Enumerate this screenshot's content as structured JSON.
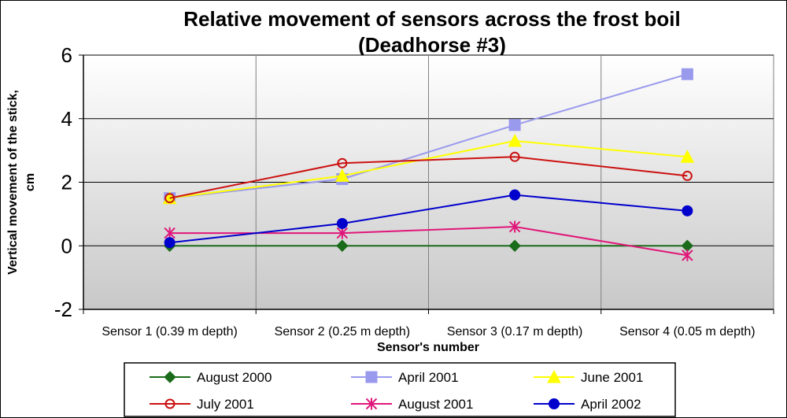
{
  "chart_data": {
    "type": "line",
    "title": "Relative movement of sensors across the frost boil",
    "subtitle": "(Deadhorse #3)",
    "xlabel": "Sensor's number",
    "ylabel": "Vertical movement of the stick, cm",
    "categories": [
      "Sensor 1 (0.39 m depth)",
      "Sensor 2 (0.25 m depth)",
      "Sensor 3 (0.17 m depth)",
      "Sensor 4 (0.05 m depth)"
    ],
    "ylim": [
      -2,
      6
    ],
    "yticks": [
      -2,
      0,
      2,
      4,
      6
    ],
    "grid": true,
    "legend_position": "bottom",
    "series": [
      {
        "name": "August 2000",
        "values": [
          0,
          0,
          0,
          0
        ],
        "color": "#1a6b1a",
        "marker": "diamond"
      },
      {
        "name": "April 2001",
        "values": [
          1.5,
          2.1,
          3.8,
          5.4
        ],
        "color": "#9999ee",
        "marker": "square"
      },
      {
        "name": "June 2001",
        "values": [
          1.5,
          2.2,
          3.3,
          2.8
        ],
        "color": "#ffff00",
        "marker": "triangle"
      },
      {
        "name": "July 2001",
        "values": [
          1.5,
          2.6,
          2.8,
          2.2
        ],
        "color": "#cc1111",
        "marker": "circle-open"
      },
      {
        "name": "August 2001",
        "values": [
          0.4,
          0.4,
          0.6,
          -0.3
        ],
        "color": "#e0167a",
        "marker": "star"
      },
      {
        "name": "April 2002",
        "values": [
          0.1,
          0.7,
          1.6,
          1.1
        ],
        "color": "#0000cc",
        "marker": "circle"
      }
    ]
  }
}
